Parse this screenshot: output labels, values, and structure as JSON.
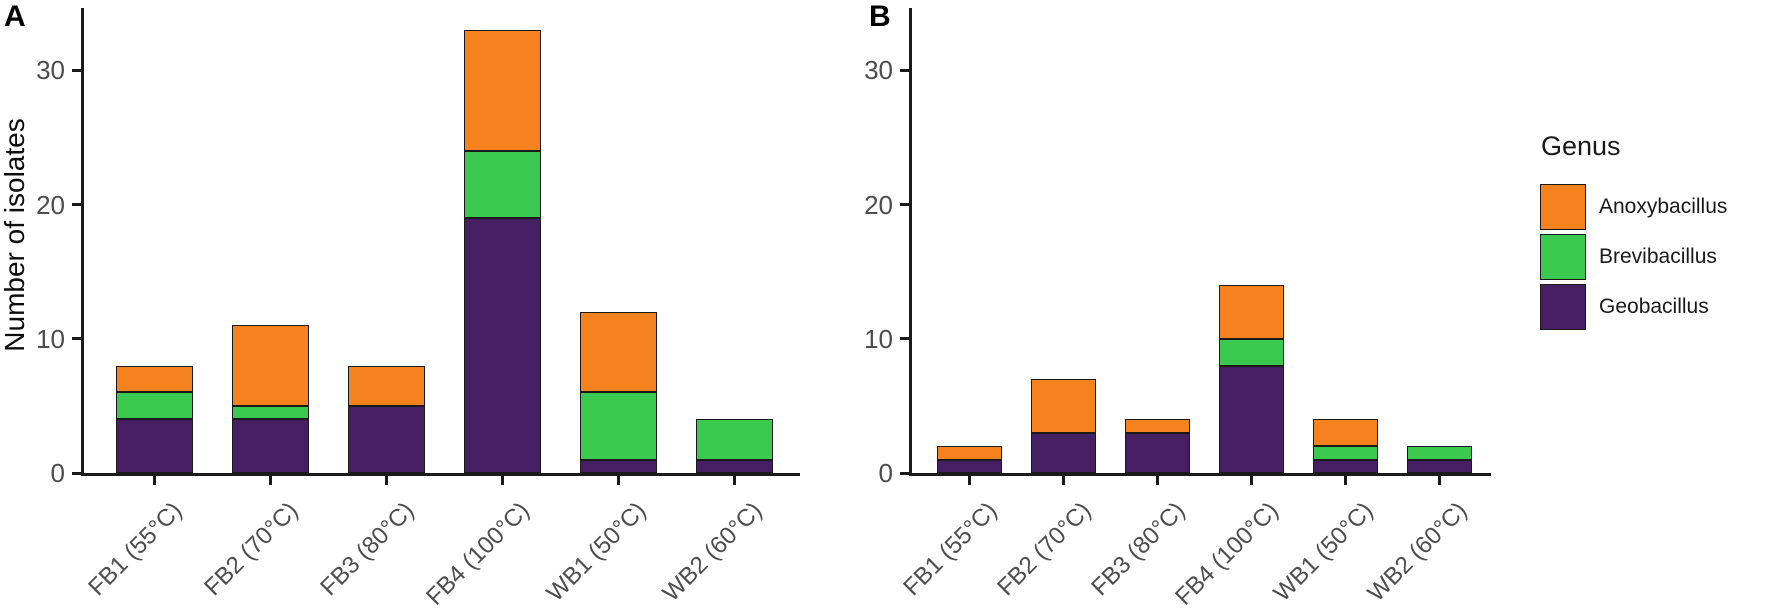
{
  "figure": {
    "panels": [
      {
        "label": "A"
      },
      {
        "label": "B"
      }
    ]
  },
  "legend": {
    "title": "Genus",
    "entries": [
      {
        "label": "Anoxybacillus",
        "color": "#F5821F"
      },
      {
        "label": "Brevibacillus",
        "color": "#3AC84F"
      },
      {
        "label": "Geobacillus",
        "color": "#461F63"
      }
    ]
  },
  "chart_data": [
    {
      "type": "bar",
      "stacked": true,
      "panel": "A",
      "title": "",
      "xlabel": "",
      "ylabel": "Number of isolates",
      "categories": [
        "FB1 (55°C)",
        "FB2 (70°C)",
        "FB3 (80°C)",
        "FB4 (100°C)",
        "WB1 (50°C)",
        "WB2 (60°C)"
      ],
      "series": [
        {
          "name": "Geobacillus",
          "color": "#461F63",
          "values": [
            4,
            4,
            5,
            19,
            1,
            1
          ]
        },
        {
          "name": "Brevibacillus",
          "color": "#3AC84F",
          "values": [
            2,
            1,
            0,
            5,
            5,
            3
          ]
        },
        {
          "name": "Anoxybacillus",
          "color": "#F5821F",
          "values": [
            2,
            6,
            3,
            9,
            6,
            0
          ]
        }
      ],
      "yticks": [
        0,
        10,
        20,
        30
      ],
      "ylim": [
        0,
        34.6
      ],
      "grid": false,
      "legend_position": "right"
    },
    {
      "type": "bar",
      "stacked": true,
      "panel": "B",
      "title": "",
      "xlabel": "",
      "ylabel": "",
      "categories": [
        "FB1 (55°C)",
        "FB2 (70°C)",
        "FB3 (80°C)",
        "FB4 (100°C)",
        "WB1 (50°C)",
        "WB2 (60°C)"
      ],
      "series": [
        {
          "name": "Geobacillus",
          "color": "#461F63",
          "values": [
            1,
            3,
            3,
            8,
            1,
            1
          ]
        },
        {
          "name": "Brevibacillus",
          "color": "#3AC84F",
          "values": [
            0,
            0,
            0,
            2,
            1,
            1
          ]
        },
        {
          "name": "Anoxybacillus",
          "color": "#F5821F",
          "values": [
            1,
            4,
            1,
            4,
            2,
            0
          ]
        }
      ],
      "yticks": [
        0,
        10,
        20,
        30
      ],
      "ylim": [
        0,
        34.6
      ],
      "grid": false,
      "legend_position": "right"
    }
  ]
}
